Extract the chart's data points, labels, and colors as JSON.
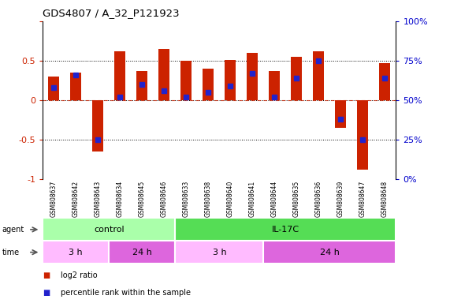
{
  "title": "GDS4807 / A_32_P121923",
  "samples": [
    "GSM808637",
    "GSM808642",
    "GSM808643",
    "GSM808634",
    "GSM808645",
    "GSM808646",
    "GSM808633",
    "GSM808638",
    "GSM808640",
    "GSM808641",
    "GSM808644",
    "GSM808635",
    "GSM808636",
    "GSM808639",
    "GSM808647",
    "GSM808648"
  ],
  "log2_ratio": [
    0.3,
    0.35,
    -0.65,
    0.62,
    0.37,
    0.65,
    0.5,
    0.4,
    0.51,
    0.6,
    0.37,
    0.55,
    0.62,
    -0.35,
    -0.88,
    0.47
  ],
  "percentile": [
    0.58,
    0.66,
    0.25,
    0.52,
    0.6,
    0.56,
    0.52,
    0.55,
    0.59,
    0.67,
    0.52,
    0.64,
    0.75,
    0.38,
    0.25,
    0.64
  ],
  "bar_color": "#cc2200",
  "dot_color": "#2222cc",
  "ylim_left": [
    -1.0,
    1.0
  ],
  "yticks_left": [
    -1.0,
    -0.5,
    0.0,
    0.5
  ],
  "ytick_labels_left": [
    "-1",
    "-0.5",
    "0",
    "0.5"
  ],
  "ytick_labels_right": [
    "0%",
    "25%",
    "50%",
    "75%",
    "100%"
  ],
  "hlines": [
    0.5,
    0.0,
    -0.5
  ],
  "agent_groups": [
    {
      "label": "control",
      "start": 0,
      "end": 6,
      "color": "#aaffaa"
    },
    {
      "label": "IL-17C",
      "start": 6,
      "end": 16,
      "color": "#55dd55"
    }
  ],
  "time_groups": [
    {
      "label": "3 h",
      "start": 0,
      "end": 3,
      "color": "#ffbbff"
    },
    {
      "label": "24 h",
      "start": 3,
      "end": 6,
      "color": "#dd66dd"
    },
    {
      "label": "3 h",
      "start": 6,
      "end": 10,
      "color": "#ffbbff"
    },
    {
      "label": "24 h",
      "start": 10,
      "end": 16,
      "color": "#dd66dd"
    }
  ],
  "legend_items": [
    {
      "label": "log2 ratio",
      "color": "#cc2200"
    },
    {
      "label": "percentile rank within the sample",
      "color": "#2222cc"
    }
  ],
  "background_color": "#ffffff",
  "tick_label_color_left": "#cc2200",
  "tick_label_color_right": "#0000cc",
  "bar_width": 0.5,
  "dot_size": 18,
  "label_bg_color": "#d0d0d0"
}
